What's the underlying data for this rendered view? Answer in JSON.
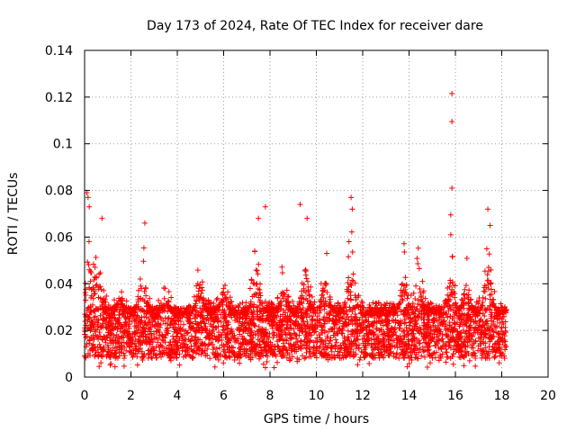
{
  "chart_data": {
    "type": "scatter",
    "title": "Day 173 of 2024, Rate Of TEC Index for receiver dare",
    "xlabel": "GPS time / hours",
    "ylabel": "ROTI / TECUs",
    "xlim": [
      0,
      20
    ],
    "ylim": [
      0,
      0.14
    ],
    "x_ticks": [
      0,
      2,
      4,
      6,
      8,
      10,
      12,
      14,
      16,
      18,
      20
    ],
    "y_ticks": [
      0,
      0.02,
      0.04,
      0.06,
      0.08,
      0.1,
      0.12,
      0.14
    ],
    "x_tick_labels": [
      "0",
      "2",
      "4",
      "6",
      "8",
      "10",
      "12",
      "14",
      "16",
      "18",
      "20"
    ],
    "y_tick_labels": [
      "0",
      "0.02",
      "0.04",
      "0.06",
      "0.08",
      "0.1",
      "0.12",
      "0.14"
    ],
    "grid": true,
    "marker": "plus",
    "color": "#ff0000",
    "data_x_range": [
      0,
      18.2
    ],
    "bulk_band": [
      0.008,
      0.03
    ],
    "notable_points": [
      {
        "x": 0.1,
        "y": 0.079
      },
      {
        "x": 0.15,
        "y": 0.077
      },
      {
        "x": 0.2,
        "y": 0.073
      },
      {
        "x": 0.75,
        "y": 0.068
      },
      {
        "x": 2.6,
        "y": 0.066
      },
      {
        "x": 7.5,
        "y": 0.068
      },
      {
        "x": 7.8,
        "y": 0.073
      },
      {
        "x": 9.3,
        "y": 0.074
      },
      {
        "x": 9.6,
        "y": 0.068
      },
      {
        "x": 11.5,
        "y": 0.077
      },
      {
        "x": 11.55,
        "y": 0.072
      },
      {
        "x": 15.85,
        "y": 0.1215
      },
      {
        "x": 15.85,
        "y": 0.1095
      },
      {
        "x": 15.85,
        "y": 0.081
      },
      {
        "x": 15.8,
        "y": 0.0695
      },
      {
        "x": 15.8,
        "y": 0.061
      },
      {
        "x": 17.4,
        "y": 0.072
      },
      {
        "x": 17.5,
        "y": 0.065
      }
    ],
    "peaks": [
      {
        "x": 0.2,
        "y": 0.065
      },
      {
        "x": 0.6,
        "y": 0.062
      },
      {
        "x": 1.5,
        "y": 0.045
      },
      {
        "x": 2.5,
        "y": 0.062
      },
      {
        "x": 3.5,
        "y": 0.04
      },
      {
        "x": 5.0,
        "y": 0.052
      },
      {
        "x": 6.0,
        "y": 0.047
      },
      {
        "x": 7.4,
        "y": 0.062
      },
      {
        "x": 8.6,
        "y": 0.05
      },
      {
        "x": 9.5,
        "y": 0.065
      },
      {
        "x": 10.4,
        "y": 0.056
      },
      {
        "x": 11.5,
        "y": 0.07
      },
      {
        "x": 13.8,
        "y": 0.058
      },
      {
        "x": 14.4,
        "y": 0.056
      },
      {
        "x": 15.8,
        "y": 0.058
      },
      {
        "x": 16.5,
        "y": 0.052
      },
      {
        "x": 17.4,
        "y": 0.065
      }
    ]
  }
}
